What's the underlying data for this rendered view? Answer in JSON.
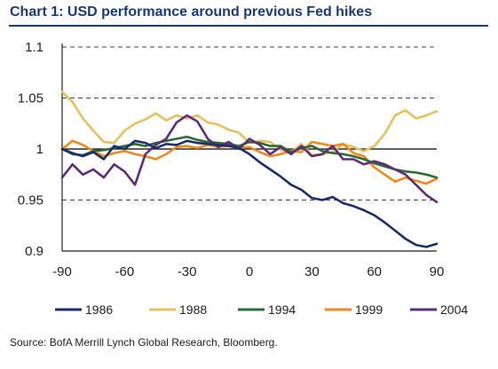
{
  "title": "Chart 1: USD performance around previous Fed hikes",
  "source": "Source: BofA Merrill Lynch Global Research, Bloomberg.",
  "colors": {
    "title": "#1a3a78"
  },
  "chart_data": {
    "type": "line",
    "xlim": [
      -90,
      90
    ],
    "ylim": [
      0.9,
      1.1
    ],
    "xticks": [
      -90,
      -60,
      -30,
      0,
      30,
      60,
      90
    ],
    "yticks": [
      0.9,
      0.95,
      1,
      1.05,
      1.1
    ],
    "xtick_labels": [
      "-90",
      "-60",
      "-30",
      "0",
      "30",
      "60",
      "90"
    ],
    "ytick_labels": [
      "0.9",
      "0.95",
      "1",
      "1.05",
      "1.1"
    ],
    "grid": "horizontal dashed",
    "legend_position": "bottom",
    "series": [
      {
        "name": "1986",
        "color": "#1b2f6b",
        "x": [
          -90,
          -85,
          -80,
          -75,
          -70,
          -65,
          -60,
          -55,
          -50,
          -45,
          -40,
          -35,
          -30,
          -25,
          -20,
          -15,
          -10,
          -5,
          0,
          5,
          10,
          15,
          20,
          25,
          30,
          35,
          40,
          45,
          50,
          55,
          60,
          65,
          70,
          75,
          80,
          85,
          90
        ],
        "y": [
          1.0,
          0.996,
          0.993,
          0.997,
          0.99,
          1.003,
          1.0,
          1.008,
          1.006,
          1.001,
          1.005,
          1.004,
          1.008,
          1.006,
          1.005,
          1.004,
          1.003,
          1.001,
          0.995,
          0.987,
          0.98,
          0.973,
          0.965,
          0.96,
          0.952,
          0.95,
          0.953,
          0.947,
          0.944,
          0.94,
          0.935,
          0.928,
          0.92,
          0.912,
          0.906,
          0.904,
          0.907
        ]
      },
      {
        "name": "1988",
        "color": "#e5c15e",
        "x": [
          -90,
          -85,
          -80,
          -75,
          -70,
          -65,
          -60,
          -55,
          -50,
          -45,
          -40,
          -35,
          -30,
          -25,
          -20,
          -15,
          -10,
          -5,
          0,
          5,
          10,
          15,
          20,
          25,
          30,
          35,
          40,
          45,
          50,
          55,
          60,
          65,
          70,
          75,
          80,
          85,
          90
        ],
        "y": [
          1.056,
          1.046,
          1.03,
          1.018,
          1.007,
          1.006,
          1.018,
          1.025,
          1.029,
          1.035,
          1.028,
          1.033,
          1.03,
          1.033,
          1.026,
          1.024,
          1.019,
          1.016,
          1.006,
          1.008,
          1.007,
          0.999,
          0.997,
          1.005,
          0.994,
          0.995,
          0.997,
          1.005,
          1.002,
          0.998,
          1.003,
          1.015,
          1.033,
          1.038,
          1.03,
          1.033,
          1.037
        ]
      },
      {
        "name": "1994",
        "color": "#2e6b35",
        "x": [
          -90,
          -85,
          -80,
          -75,
          -70,
          -65,
          -60,
          -55,
          -50,
          -45,
          -40,
          -35,
          -30,
          -25,
          -20,
          -15,
          -10,
          -5,
          0,
          5,
          10,
          15,
          20,
          25,
          30,
          35,
          40,
          45,
          50,
          55,
          60,
          65,
          70,
          75,
          80,
          85,
          90
        ],
        "y": [
          1.0,
          0.995,
          0.994,
          0.998,
          0.999,
          1.001,
          1.003,
          1.005,
          1.003,
          1.006,
          1.008,
          1.01,
          1.012,
          1.009,
          1.007,
          1.006,
          1.005,
          1.003,
          1.007,
          1.006,
          1.003,
          1.003,
          0.997,
          1.001,
          1.003,
          0.998,
          0.996,
          0.995,
          0.993,
          0.99,
          0.986,
          0.983,
          0.98,
          0.978,
          0.977,
          0.975,
          0.972
        ]
      },
      {
        "name": "1999",
        "color": "#f0891a",
        "x": [
          -90,
          -85,
          -80,
          -75,
          -70,
          -65,
          -60,
          -55,
          -50,
          -45,
          -40,
          -35,
          -30,
          -25,
          -20,
          -15,
          -10,
          -5,
          0,
          5,
          10,
          15,
          20,
          25,
          30,
          35,
          40,
          45,
          50,
          55,
          60,
          65,
          70,
          75,
          80,
          85,
          90
        ],
        "y": [
          1.0,
          1.008,
          1.004,
          0.998,
          0.993,
          0.996,
          0.998,
          0.995,
          0.993,
          0.99,
          0.995,
          1.002,
          1.003,
          1.001,
          1.004,
          1.002,
          1.003,
          1.001,
          1.002,
          0.997,
          0.993,
          0.995,
          0.998,
          0.997,
          1.007,
          1.005,
          1.003,
          1.005,
          0.996,
          0.993,
          0.982,
          0.975,
          0.968,
          0.972,
          0.969,
          0.966,
          0.971
        ]
      },
      {
        "name": "2004",
        "color": "#5e2d79",
        "x": [
          -90,
          -85,
          -80,
          -75,
          -70,
          -65,
          -60,
          -55,
          -50,
          -45,
          -40,
          -35,
          -30,
          -25,
          -20,
          -15,
          -10,
          -5,
          0,
          5,
          10,
          15,
          20,
          25,
          30,
          35,
          40,
          45,
          50,
          55,
          60,
          65,
          70,
          75,
          80,
          85,
          90
        ],
        "y": [
          0.972,
          0.985,
          0.975,
          0.98,
          0.972,
          0.985,
          0.978,
          0.965,
          0.995,
          1.004,
          1.01,
          1.026,
          1.033,
          1.027,
          1.01,
          1.002,
          1.007,
          1.0,
          1.01,
          1.004,
          0.995,
          1.002,
          0.995,
          1.003,
          0.993,
          0.995,
          1.003,
          0.99,
          0.99,
          0.985,
          0.988,
          0.985,
          0.98,
          0.975,
          0.965,
          0.955,
          0.948
        ]
      }
    ]
  }
}
